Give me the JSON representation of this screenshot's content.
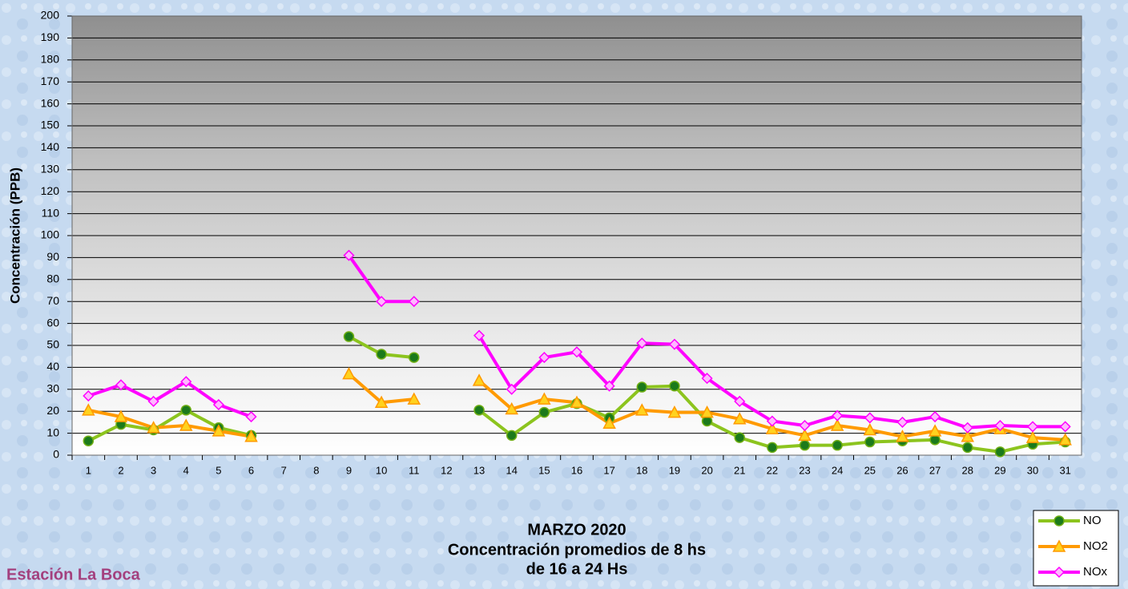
{
  "chart_data": {
    "type": "line",
    "title": "MARZO 2020",
    "subtitle": [
      "Concentración promedios de 8 hs",
      "de 16 a 24 Hs"
    ],
    "annotation": "Estación La Boca",
    "ylabel": "Concentración  (PPB)",
    "categories": [
      "1",
      "2",
      "3",
      "4",
      "5",
      "6",
      "7",
      "8",
      "9",
      "10",
      "11",
      "12",
      "13",
      "14",
      "15",
      "16",
      "17",
      "18",
      "19",
      "20",
      "21",
      "22",
      "23",
      "24",
      "25",
      "26",
      "27",
      "28",
      "29",
      "30",
      "31"
    ],
    "series": [
      {
        "name": "NO",
        "color": "#8cc41e",
        "marker": "circle",
        "marker_color": "#1b7a1b",
        "values": [
          6.5,
          14,
          11.5,
          20.5,
          12.5,
          9,
          null,
          null,
          54,
          46,
          44.5,
          null,
          20.5,
          9,
          19.5,
          23.5,
          17,
          31,
          31.5,
          15.5,
          8,
          3.5,
          4.5,
          4.5,
          6,
          6.5,
          7,
          3.5,
          1.5,
          5,
          6
        ]
      },
      {
        "name": "NO2",
        "color": "#ff9a00",
        "marker": "triangle",
        "marker_color": "#ffd21f",
        "values": [
          20.5,
          17.5,
          12.5,
          13.5,
          11,
          8.5,
          null,
          null,
          37,
          24,
          25.5,
          null,
          34,
          21,
          25.5,
          24,
          14.5,
          20.5,
          19.5,
          19.5,
          16.5,
          12,
          9,
          13.5,
          11.5,
          8.5,
          11,
          8.5,
          12,
          8,
          7
        ]
      },
      {
        "name": "NOx",
        "color": "#ff00ff",
        "marker": "diamond",
        "marker_color": "#ffb8ff",
        "values": [
          27,
          32,
          24.5,
          33.5,
          23,
          17.5,
          null,
          null,
          91,
          70,
          70,
          null,
          54.5,
          30,
          44.5,
          47,
          31.5,
          51,
          50.5,
          35,
          24.5,
          15.5,
          13.5,
          18,
          17,
          15,
          17.5,
          12.5,
          13.5,
          13,
          13
        ]
      }
    ],
    "ylim": [
      0,
      200
    ],
    "yticks": [
      0,
      10,
      20,
      30,
      40,
      50,
      60,
      70,
      80,
      90,
      100,
      110,
      120,
      130,
      140,
      150,
      160,
      170,
      180,
      190,
      200
    ],
    "grid": true,
    "legend": "lower right"
  }
}
